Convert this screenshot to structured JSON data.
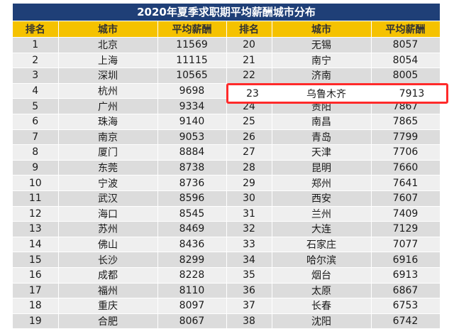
{
  "title": "2020年夏季求职期平均薪酬城市分布",
  "headers": {
    "rank": "排名",
    "city": "城市",
    "salary": "平均薪酬"
  },
  "left": [
    {
      "rank": "1",
      "city": "北京",
      "salary": "11569"
    },
    {
      "rank": "2",
      "city": "上海",
      "salary": "11115"
    },
    {
      "rank": "3",
      "city": "深圳",
      "salary": "10565"
    },
    {
      "rank": "4",
      "city": "杭州",
      "salary": "9698"
    },
    {
      "rank": "5",
      "city": "广州",
      "salary": "9334"
    },
    {
      "rank": "6",
      "city": "珠海",
      "salary": "9140"
    },
    {
      "rank": "7",
      "city": "南京",
      "salary": "9053"
    },
    {
      "rank": "8",
      "city": "厦门",
      "salary": "8884"
    },
    {
      "rank": "9",
      "city": "东莞",
      "salary": "8738"
    },
    {
      "rank": "10",
      "city": "宁波",
      "salary": "8736"
    },
    {
      "rank": "11",
      "city": "武汉",
      "salary": "8596"
    },
    {
      "rank": "12",
      "city": "海口",
      "salary": "8545"
    },
    {
      "rank": "13",
      "city": "苏州",
      "salary": "8469"
    },
    {
      "rank": "14",
      "city": "佛山",
      "salary": "8436"
    },
    {
      "rank": "15",
      "city": "长沙",
      "salary": "8299"
    },
    {
      "rank": "16",
      "city": "成都",
      "salary": "8228"
    },
    {
      "rank": "17",
      "city": "福州",
      "salary": "8110"
    },
    {
      "rank": "18",
      "city": "重庆",
      "salary": "8097"
    },
    {
      "rank": "19",
      "city": "合肥",
      "salary": "8067"
    }
  ],
  "right": [
    {
      "rank": "20",
      "city": "无锡",
      "salary": "8057"
    },
    {
      "rank": "21",
      "city": "南宁",
      "salary": "8054"
    },
    {
      "rank": "22",
      "city": "济南",
      "salary": "8005"
    },
    {
      "rank": "23",
      "city": "乌鲁木齐",
      "salary": "7913"
    },
    {
      "rank": "24",
      "city": "贵阳",
      "salary": "7867"
    },
    {
      "rank": "25",
      "city": "南昌",
      "salary": "7865"
    },
    {
      "rank": "26",
      "city": "青岛",
      "salary": "7799"
    },
    {
      "rank": "27",
      "city": "天津",
      "salary": "7706"
    },
    {
      "rank": "28",
      "city": "昆明",
      "salary": "7660"
    },
    {
      "rank": "29",
      "city": "郑州",
      "salary": "7641"
    },
    {
      "rank": "30",
      "city": "西安",
      "salary": "7607"
    },
    {
      "rank": "31",
      "city": "兰州",
      "salary": "7409"
    },
    {
      "rank": "32",
      "city": "大连",
      "salary": "7129"
    },
    {
      "rank": "33",
      "city": "石家庄",
      "salary": "7077"
    },
    {
      "rank": "34",
      "city": "哈尔滨",
      "salary": "6916"
    },
    {
      "rank": "35",
      "city": "烟台",
      "salary": "6913"
    },
    {
      "rank": "36",
      "city": "太原",
      "salary": "6867"
    },
    {
      "rank": "37",
      "city": "长春",
      "salary": "6753"
    },
    {
      "rank": "38",
      "city": "沈阳",
      "salary": "6742"
    }
  ],
  "highlight_row_index": 3,
  "colors": {
    "title_bg": "#1f3f77",
    "header_bg": "#f5c200",
    "row_odd": "#dcdcdc",
    "row_even": "#efefef",
    "highlight_border": "#ff2a2a"
  }
}
